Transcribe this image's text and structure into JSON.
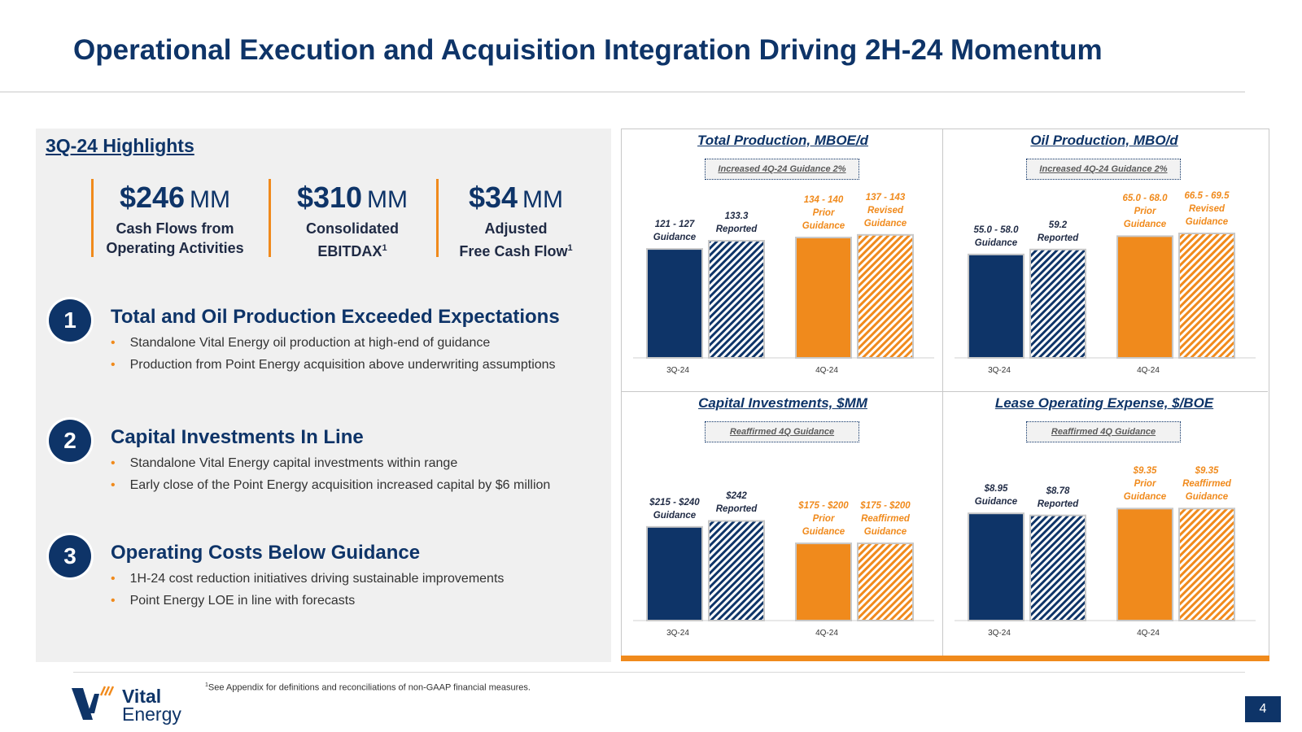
{
  "page": {
    "title": "Operational Execution and Acquisition Integration Driving 2H-24 Momentum",
    "page_number": "4"
  },
  "highlights": {
    "title": "3Q-24 Highlights",
    "metrics": [
      {
        "value": "$246",
        "unit": "MM",
        "label1": "Cash Flows from",
        "label2": "Operating Activities",
        "sup": ""
      },
      {
        "value": "$310",
        "unit": "MM",
        "label1": "Consolidated",
        "label2": "EBITDAX",
        "sup": "1"
      },
      {
        "value": "$34",
        "unit": "MM",
        "label1": "Adjusted",
        "label2": "Free Cash Flow",
        "sup": "1"
      }
    ],
    "items": [
      {
        "num": "1",
        "heading": "Total and Oil Production Exceeded Expectations",
        "bullets": [
          "Standalone Vital Energy oil production at high-end of guidance",
          "Production from Point Energy acquisition above underwriting assumptions"
        ]
      },
      {
        "num": "2",
        "heading": "Capital Investments In Line",
        "bullets": [
          "Standalone Vital Energy capital investments within range",
          "Early close of the Point Energy acquisition increased capital by $6 million"
        ]
      },
      {
        "num": "3",
        "heading": "Operating Costs Below Guidance",
        "bullets": [
          "1H-24 cost reduction initiatives driving sustainable improvements",
          "Point Energy LOE in line with forecasts"
        ]
      }
    ]
  },
  "chart_data": [
    {
      "type": "bar",
      "title": "Total Production, MBOE/d",
      "note": "Increased 4Q-24 Guidance 2%",
      "categories": [
        "3Q-24",
        "4Q-24"
      ],
      "ylim": [
        0,
        150
      ],
      "series": [
        {
          "name": "3Q-24 Guidance",
          "values": [
            124,
            null
          ],
          "label": [
            "121 - 127",
            "Guidance"
          ],
          "style": "solid-navy"
        },
        {
          "name": "3Q-24 Reported",
          "values": [
            133.3,
            null
          ],
          "label": [
            "133.3",
            "Reported"
          ],
          "style": "hatched-navy"
        },
        {
          "name": "4Q-24 Prior Guidance",
          "values": [
            null,
            137
          ],
          "label": [
            "134 - 140",
            "Prior",
            "Guidance"
          ],
          "style": "solid-orange"
        },
        {
          "name": "4Q-24 Revised Guidance",
          "values": [
            null,
            140
          ],
          "label": [
            "137 - 143",
            "Revised",
            "Guidance"
          ],
          "style": "hatched-orange"
        }
      ]
    },
    {
      "type": "bar",
      "title": "Oil Production, MBO/d",
      "note": "Increased 4Q-24 Guidance 2%",
      "categories": [
        "3Q-24",
        "4Q-24"
      ],
      "ylim": [
        0,
        72
      ],
      "series": [
        {
          "name": "3Q-24 Guidance",
          "values": [
            56.5,
            null
          ],
          "label": [
            "55.0 - 58.0",
            "Guidance"
          ],
          "style": "solid-navy"
        },
        {
          "name": "3Q-24 Reported",
          "values": [
            59.2,
            null
          ],
          "label": [
            "59.2",
            "Reported"
          ],
          "style": "hatched-navy"
        },
        {
          "name": "4Q-24 Prior Guidance",
          "values": [
            null,
            66.5
          ],
          "label": [
            "65.0 - 68.0",
            "Prior",
            "Guidance"
          ],
          "style": "solid-orange"
        },
        {
          "name": "4Q-24 Revised Guidance",
          "values": [
            null,
            68
          ],
          "label": [
            "66.5 - 69.5",
            "Revised",
            "Guidance"
          ],
          "style": "hatched-orange"
        }
      ]
    },
    {
      "type": "bar",
      "title": "Capital Investments, $MM",
      "note": "Reaffirmed 4Q Guidance",
      "categories": [
        "3Q-24",
        "4Q-24"
      ],
      "ylim": [
        0,
        320
      ],
      "series": [
        {
          "name": "3Q-24 Guidance",
          "values": [
            227.5,
            null
          ],
          "label": [
            "$215 - $240",
            "Guidance"
          ],
          "style": "solid-navy"
        },
        {
          "name": "3Q-24 Reported",
          "values": [
            242,
            null
          ],
          "label": [
            "$242",
            "Reported"
          ],
          "style": "hatched-navy"
        },
        {
          "name": "4Q-24 Prior Guidance",
          "values": [
            null,
            187.5
          ],
          "label": [
            "$175 - $200",
            "Prior",
            "Guidance"
          ],
          "style": "solid-orange"
        },
        {
          "name": "4Q-24 Reaffirmed Guidance",
          "values": [
            null,
            187.5
          ],
          "label": [
            "$175 - $200",
            "Reaffirmed",
            "Guidance"
          ],
          "style": "hatched-orange"
        }
      ]
    },
    {
      "type": "bar",
      "title": "Lease Operating Expense, $/BOE",
      "note": "Reaffirmed 4Q Guidance",
      "categories": [
        "3Q-24",
        "4Q-24"
      ],
      "ylim": [
        0,
        11
      ],
      "series": [
        {
          "name": "3Q-24 Guidance",
          "values": [
            8.95,
            null
          ],
          "label": [
            "$8.95",
            "Guidance"
          ],
          "style": "solid-navy"
        },
        {
          "name": "3Q-24 Reported",
          "values": [
            8.78,
            null
          ],
          "label": [
            "$8.78",
            "Reported"
          ],
          "style": "hatched-navy"
        },
        {
          "name": "4Q-24 Prior Guidance",
          "values": [
            null,
            9.35
          ],
          "label": [
            "$9.35",
            "Prior",
            "Guidance"
          ],
          "style": "solid-orange"
        },
        {
          "name": "4Q-24 Reaffirmed Guidance",
          "values": [
            null,
            9.35
          ],
          "label": [
            "$9.35",
            "Reaffirmed",
            "Guidance"
          ],
          "style": "hatched-orange"
        }
      ]
    }
  ],
  "footer": {
    "footnote_sup": "1",
    "footnote": "See Appendix for definitions and reconciliations of non-GAAP financial measures.",
    "logo_line1": "Vital",
    "logo_line2": "Energy"
  },
  "colors": {
    "navy": "#0e3468",
    "orange": "#f08a1c"
  }
}
